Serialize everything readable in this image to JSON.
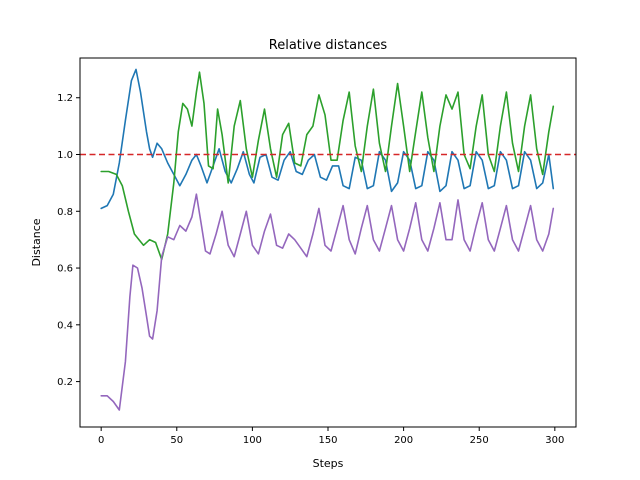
{
  "chart_data": {
    "type": "line",
    "title": "Relative distances",
    "xlabel": "Steps",
    "ylabel": "Distance",
    "xlim": [
      -14,
      314
    ],
    "ylim": [
      0.04,
      1.34
    ],
    "grid": false,
    "xticks": [
      0,
      50,
      100,
      150,
      200,
      250,
      300
    ],
    "yticks": [
      0.2,
      0.4,
      0.6,
      0.8,
      1.0,
      1.2
    ],
    "ytick_labels": [
      "0.2",
      "0.4",
      "0.6",
      "0.8",
      "1.0",
      "1.2"
    ],
    "reference_line": {
      "y": 1.0,
      "color": "#d62728",
      "style": "dashed"
    },
    "series": [
      {
        "color": "#1f77b4",
        "points": [
          [
            0,
            0.81
          ],
          [
            4,
            0.82
          ],
          [
            8,
            0.86
          ],
          [
            12,
            0.97
          ],
          [
            16,
            1.12
          ],
          [
            20,
            1.26
          ],
          [
            23,
            1.3
          ],
          [
            26,
            1.22
          ],
          [
            30,
            1.08
          ],
          [
            32,
            1.02
          ],
          [
            34,
            0.99
          ],
          [
            37,
            1.04
          ],
          [
            40,
            1.02
          ],
          [
            44,
            0.97
          ],
          [
            48,
            0.93
          ],
          [
            52,
            0.89
          ],
          [
            56,
            0.93
          ],
          [
            60,
            0.98
          ],
          [
            63,
            1.0
          ],
          [
            66,
            0.96
          ],
          [
            70,
            0.9
          ],
          [
            74,
            0.96
          ],
          [
            78,
            1.02
          ],
          [
            82,
            0.94
          ],
          [
            86,
            0.9
          ],
          [
            90,
            0.95
          ],
          [
            94,
            1.01
          ],
          [
            98,
            0.93
          ],
          [
            101,
            0.9
          ],
          [
            105,
            0.99
          ],
          [
            109,
            1.0
          ],
          [
            113,
            0.92
          ],
          [
            117,
            0.91
          ],
          [
            121,
            0.98
          ],
          [
            125,
            1.01
          ],
          [
            129,
            0.94
          ],
          [
            133,
            0.93
          ],
          [
            137,
            0.98
          ],
          [
            141,
            1.0
          ],
          [
            145,
            0.92
          ],
          [
            149,
            0.91
          ],
          [
            153,
            0.96
          ],
          [
            157,
            0.96
          ],
          [
            160,
            0.89
          ],
          [
            164,
            0.88
          ],
          [
            168,
            0.99
          ],
          [
            172,
            0.98
          ],
          [
            176,
            0.88
          ],
          [
            180,
            0.89
          ],
          [
            184,
            1.01
          ],
          [
            188,
            0.98
          ],
          [
            192,
            0.87
          ],
          [
            196,
            0.9
          ],
          [
            200,
            1.01
          ],
          [
            204,
            0.98
          ],
          [
            208,
            0.88
          ],
          [
            212,
            0.89
          ],
          [
            216,
            1.01
          ],
          [
            220,
            0.98
          ],
          [
            224,
            0.87
          ],
          [
            228,
            0.89
          ],
          [
            232,
            1.01
          ],
          [
            236,
            0.98
          ],
          [
            240,
            0.88
          ],
          [
            244,
            0.89
          ],
          [
            248,
            1.01
          ],
          [
            252,
            0.98
          ],
          [
            256,
            0.88
          ],
          [
            260,
            0.89
          ],
          [
            264,
            1.01
          ],
          [
            268,
            0.98
          ],
          [
            272,
            0.88
          ],
          [
            276,
            0.89
          ],
          [
            280,
            1.01
          ],
          [
            284,
            0.98
          ],
          [
            288,
            0.88
          ],
          [
            292,
            0.9
          ],
          [
            296,
            1.0
          ],
          [
            299,
            0.88
          ]
        ]
      },
      {
        "color": "#2ca02c",
        "points": [
          [
            0,
            0.94
          ],
          [
            5,
            0.94
          ],
          [
            10,
            0.93
          ],
          [
            14,
            0.89
          ],
          [
            18,
            0.8
          ],
          [
            22,
            0.72
          ],
          [
            25,
            0.7
          ],
          [
            28,
            0.68
          ],
          [
            32,
            0.7
          ],
          [
            36,
            0.69
          ],
          [
            40,
            0.63
          ],
          [
            44,
            0.72
          ],
          [
            48,
            0.9
          ],
          [
            51,
            1.08
          ],
          [
            54,
            1.18
          ],
          [
            57,
            1.16
          ],
          [
            60,
            1.1
          ],
          [
            63,
            1.22
          ],
          [
            65,
            1.29
          ],
          [
            68,
            1.18
          ],
          [
            71,
            0.96
          ],
          [
            74,
            0.95
          ],
          [
            77,
            1.16
          ],
          [
            80,
            1.07
          ],
          [
            84,
            0.9
          ],
          [
            88,
            1.1
          ],
          [
            92,
            1.19
          ],
          [
            96,
            1.02
          ],
          [
            100,
            0.92
          ],
          [
            104,
            1.05
          ],
          [
            108,
            1.16
          ],
          [
            112,
            1.02
          ],
          [
            116,
            0.92
          ],
          [
            120,
            1.07
          ],
          [
            124,
            1.11
          ],
          [
            128,
            0.97
          ],
          [
            132,
            0.96
          ],
          [
            136,
            1.07
          ],
          [
            140,
            1.1
          ],
          [
            144,
            1.21
          ],
          [
            148,
            1.14
          ],
          [
            152,
            0.98
          ],
          [
            156,
            0.98
          ],
          [
            160,
            1.12
          ],
          [
            164,
            1.22
          ],
          [
            168,
            1.03
          ],
          [
            172,
            0.94
          ],
          [
            176,
            1.1
          ],
          [
            180,
            1.23
          ],
          [
            184,
            1.04
          ],
          [
            188,
            0.94
          ],
          [
            192,
            1.1
          ],
          [
            196,
            1.25
          ],
          [
            200,
            1.1
          ],
          [
            204,
            0.94
          ],
          [
            208,
            1.08
          ],
          [
            212,
            1.22
          ],
          [
            216,
            1.06
          ],
          [
            220,
            0.94
          ],
          [
            224,
            1.1
          ],
          [
            228,
            1.21
          ],
          [
            232,
            1.16
          ],
          [
            236,
            1.22
          ],
          [
            240,
            1.0
          ],
          [
            244,
            0.95
          ],
          [
            248,
            1.1
          ],
          [
            252,
            1.21
          ],
          [
            256,
            1.0
          ],
          [
            260,
            0.94
          ],
          [
            264,
            1.1
          ],
          [
            268,
            1.22
          ],
          [
            272,
            1.04
          ],
          [
            276,
            0.94
          ],
          [
            280,
            1.1
          ],
          [
            284,
            1.21
          ],
          [
            288,
            1.02
          ],
          [
            292,
            0.93
          ],
          [
            296,
            1.08
          ],
          [
            299,
            1.17
          ]
        ]
      },
      {
        "color": "#9467bd",
        "points": [
          [
            0,
            0.15
          ],
          [
            4,
            0.15
          ],
          [
            8,
            0.13
          ],
          [
            12,
            0.1
          ],
          [
            16,
            0.27
          ],
          [
            19,
            0.5
          ],
          [
            21,
            0.61
          ],
          [
            24,
            0.6
          ],
          [
            27,
            0.53
          ],
          [
            30,
            0.43
          ],
          [
            32,
            0.36
          ],
          [
            34,
            0.35
          ],
          [
            37,
            0.45
          ],
          [
            40,
            0.64
          ],
          [
            44,
            0.71
          ],
          [
            48,
            0.7
          ],
          [
            52,
            0.75
          ],
          [
            56,
            0.73
          ],
          [
            60,
            0.78
          ],
          [
            63,
            0.86
          ],
          [
            66,
            0.76
          ],
          [
            69,
            0.66
          ],
          [
            72,
            0.65
          ],
          [
            76,
            0.72
          ],
          [
            80,
            0.8
          ],
          [
            84,
            0.68
          ],
          [
            88,
            0.64
          ],
          [
            92,
            0.72
          ],
          [
            96,
            0.8
          ],
          [
            100,
            0.68
          ],
          [
            104,
            0.65
          ],
          [
            108,
            0.73
          ],
          [
            112,
            0.79
          ],
          [
            116,
            0.68
          ],
          [
            120,
            0.67
          ],
          [
            124,
            0.72
          ],
          [
            128,
            0.7
          ],
          [
            132,
            0.67
          ],
          [
            136,
            0.64
          ],
          [
            140,
            0.72
          ],
          [
            144,
            0.81
          ],
          [
            148,
            0.68
          ],
          [
            152,
            0.66
          ],
          [
            156,
            0.74
          ],
          [
            160,
            0.82
          ],
          [
            164,
            0.7
          ],
          [
            168,
            0.65
          ],
          [
            172,
            0.74
          ],
          [
            176,
            0.82
          ],
          [
            180,
            0.7
          ],
          [
            184,
            0.66
          ],
          [
            188,
            0.74
          ],
          [
            192,
            0.82
          ],
          [
            196,
            0.7
          ],
          [
            200,
            0.66
          ],
          [
            204,
            0.74
          ],
          [
            208,
            0.83
          ],
          [
            212,
            0.7
          ],
          [
            216,
            0.66
          ],
          [
            220,
            0.74
          ],
          [
            224,
            0.83
          ],
          [
            228,
            0.7
          ],
          [
            232,
            0.7
          ],
          [
            236,
            0.84
          ],
          [
            240,
            0.7
          ],
          [
            244,
            0.66
          ],
          [
            248,
            0.75
          ],
          [
            252,
            0.83
          ],
          [
            256,
            0.7
          ],
          [
            260,
            0.66
          ],
          [
            264,
            0.74
          ],
          [
            268,
            0.82
          ],
          [
            272,
            0.7
          ],
          [
            276,
            0.66
          ],
          [
            280,
            0.74
          ],
          [
            284,
            0.82
          ],
          [
            288,
            0.7
          ],
          [
            292,
            0.66
          ],
          [
            296,
            0.72
          ],
          [
            299,
            0.81
          ]
        ]
      }
    ]
  }
}
